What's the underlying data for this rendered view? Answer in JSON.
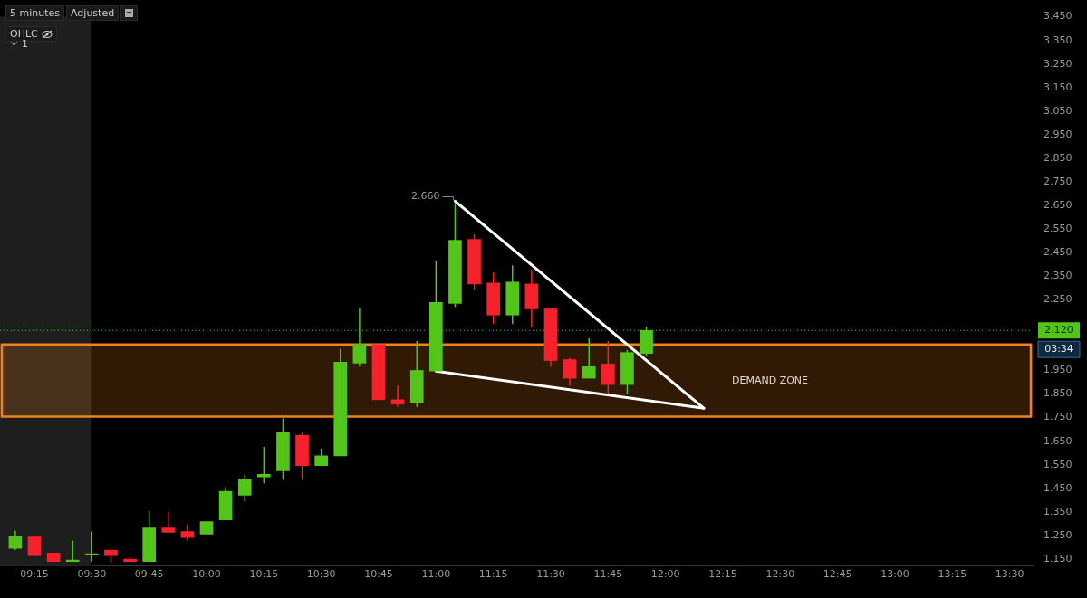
{
  "chart_data": {
    "type": "candlestick",
    "x": [
      9.1667,
      9.25,
      9.3333,
      9.4167,
      9.5,
      9.5833,
      9.6667,
      9.75,
      9.8333,
      9.9167,
      10,
      10.0833,
      10.1667,
      10.25,
      10.3333,
      10.4167,
      10.5,
      10.5833,
      10.6667,
      10.75,
      10.8333,
      10.9167,
      11,
      11.0833,
      11.1667,
      11.25,
      11.3333,
      11.4167,
      11.5,
      11.5833,
      11.6667,
      11.75,
      11.8333,
      11.9167
    ],
    "ohlc": [
      [
        1.195,
        1.271,
        1.188,
        1.248
      ],
      [
        1.244,
        1.248,
        1.165,
        1.165
      ],
      [
        1.176,
        1.176,
        1.14,
        1.14
      ],
      [
        1.14,
        1.229,
        1.14,
        1.145
      ],
      [
        1.167,
        1.267,
        1.14,
        1.167
      ],
      [
        1.188,
        1.188,
        1.136,
        1.165
      ],
      [
        1.15,
        1.158,
        1.14,
        1.14
      ],
      [
        1.14,
        1.354,
        1.14,
        1.282
      ],
      [
        1.282,
        1.35,
        1.263,
        1.263
      ],
      [
        1.267,
        1.297,
        1.229,
        1.241
      ],
      [
        1.256,
        1.309,
        1.256,
        1.309
      ],
      [
        1.316,
        1.456,
        1.316,
        1.437
      ],
      [
        1.421,
        1.509,
        1.395,
        1.486
      ],
      [
        1.498,
        1.626,
        1.471,
        1.509
      ],
      [
        1.524,
        1.747,
        1.486,
        1.686
      ],
      [
        1.675,
        1.686,
        1.486,
        1.546
      ],
      [
        1.546,
        1.618,
        1.546,
        1.588
      ],
      [
        1.588,
        2.041,
        1.588,
        1.985
      ],
      [
        1.981,
        2.215,
        1.966,
        2.06
      ],
      [
        2.06,
        2.06,
        1.826,
        1.826
      ],
      [
        1.826,
        1.886,
        1.796,
        1.807
      ],
      [
        1.815,
        2.075,
        1.796,
        1.95
      ],
      [
        1.947,
        2.415,
        1.947,
        2.238
      ],
      [
        2.234,
        2.66,
        2.219,
        2.502
      ],
      [
        2.506,
        2.528,
        2.294,
        2.317
      ],
      [
        2.321,
        2.366,
        2.147,
        2.185
      ],
      [
        2.185,
        2.396,
        2.147,
        2.325
      ],
      [
        2.317,
        2.377,
        2.136,
        2.211
      ],
      [
        2.211,
        2.211,
        1.966,
        1.992
      ],
      [
        1.996,
        2.003,
        1.886,
        1.917
      ],
      [
        1.917,
        2.087,
        1.917,
        1.966
      ],
      [
        1.977,
        2.075,
        1.852,
        1.89
      ],
      [
        1.89,
        2.037,
        1.852,
        2.026
      ],
      [
        2.022,
        2.136,
        2.011,
        2.12
      ]
    ],
    "colors": [
      "#52c41a",
      "#f5222d",
      "#f5222d",
      "#52c41a",
      "#52c41a",
      "#f5222d",
      "#f5222d",
      "#52c41a",
      "#f5222d",
      "#f5222d",
      "#52c41a",
      "#52c41a",
      "#52c41a",
      "#52c41a",
      "#52c41a",
      "#f5222d",
      "#52c41a",
      "#52c41a",
      "#52c41a",
      "#f5222d",
      "#f5222d",
      "#52c41a",
      "#52c41a",
      "#52c41a",
      "#f5222d",
      "#f5222d",
      "#52c41a",
      "#f5222d",
      "#f5222d",
      "#f5222d",
      "#52c41a",
      "#f5222d",
      "#52c41a",
      "#52c41a"
    ],
    "series": [
      {
        "type": "line",
        "color": "#ffffff",
        "x": [
          11.0833,
          12.1667
        ],
        "values": [
          2.668,
          1.79
        ]
      },
      {
        "type": "line",
        "color": "#ffffff",
        "x": [
          11,
          12.1667
        ],
        "values": [
          1.947,
          1.79
        ]
      }
    ],
    "xlim": [
      9.1,
      13.6
    ],
    "xticks": [
      {
        "value": 9.25,
        "label": "09:15"
      },
      {
        "value": 9.5,
        "label": "09:30"
      },
      {
        "value": 9.75,
        "label": "09:45"
      },
      {
        "value": 10,
        "label": "10:00"
      },
      {
        "value": 10.25,
        "label": "10:15"
      },
      {
        "value": 10.5,
        "label": "10:30"
      },
      {
        "value": 10.75,
        "label": "10:45"
      },
      {
        "value": 11,
        "label": "11:00"
      },
      {
        "value": 11.25,
        "label": "11:15"
      },
      {
        "value": 11.5,
        "label": "11:30"
      },
      {
        "value": 11.75,
        "label": "11:45"
      },
      {
        "value": 12,
        "label": "12:00"
      },
      {
        "value": 12.25,
        "label": "12:15"
      },
      {
        "value": 12.5,
        "label": "12:30"
      },
      {
        "value": 12.75,
        "label": "12:45"
      },
      {
        "value": 13,
        "label": "13:00"
      },
      {
        "value": 13.25,
        "label": "13:15"
      },
      {
        "value": 13.5,
        "label": "13:30"
      }
    ],
    "ylim": [
      1.12,
      3.45
    ],
    "yticks": [
      {
        "value": 1.15,
        "label": "1.150"
      },
      {
        "value": 1.25,
        "label": "1.250"
      },
      {
        "value": 1.35,
        "label": "1.350"
      },
      {
        "value": 1.45,
        "label": "1.450"
      },
      {
        "value": 1.55,
        "label": "1.550"
      },
      {
        "value": 1.65,
        "label": "1.650"
      },
      {
        "value": 1.75,
        "label": "1.750"
      },
      {
        "value": 1.85,
        "label": "1.850"
      },
      {
        "value": 1.95,
        "label": "1.950"
      },
      {
        "value": 2.25,
        "label": "2.250"
      },
      {
        "value": 2.35,
        "label": "2.350"
      },
      {
        "value": 2.45,
        "label": "2.450"
      },
      {
        "value": 2.55,
        "label": "2.550"
      },
      {
        "value": 2.65,
        "label": "2.650"
      },
      {
        "value": 2.75,
        "label": "2.750"
      },
      {
        "value": 2.85,
        "label": "2.850"
      },
      {
        "value": 2.95,
        "label": "2.950"
      },
      {
        "value": 3.05,
        "label": "3.050"
      },
      {
        "value": 3.15,
        "label": "3.150"
      },
      {
        "value": 3.25,
        "label": "3.250"
      },
      {
        "value": 3.35,
        "label": "3.350"
      },
      {
        "value": 3.45,
        "label": "3.450"
      }
    ],
    "bands": [
      {
        "axis": "x",
        "from": 9.1,
        "to": 9.5,
        "color": "#1e1e1e"
      },
      {
        "axis": "y",
        "from": 1.754,
        "to": 2.06,
        "label": "DEMAND ZONE",
        "color": "#f0821e"
      }
    ],
    "ref_lines": [
      {
        "axis": "y",
        "value": 2.12,
        "label": "2.120",
        "color": "#52c41a",
        "line_style": "dotted"
      }
    ],
    "annotations": [
      "5 minutes",
      "Adjusted",
      "OHLC",
      "1",
      {
        "text": "2.660",
        "x": 11.0833,
        "y": 2.66
      },
      "03:34"
    ],
    "grid": false,
    "legend": false
  }
}
